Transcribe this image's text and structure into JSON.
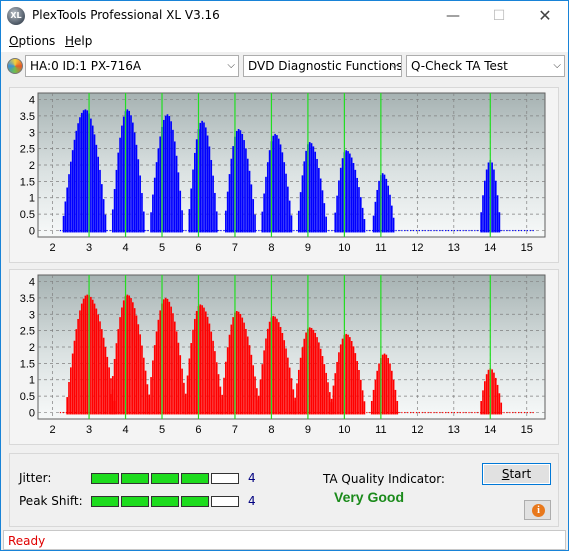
{
  "window": {
    "title": "PlexTools Professional XL V3.16",
    "app_icon_text": "XL",
    "minimize_glyph": "—",
    "maximize_glyph": "☐",
    "close_glyph": "✕"
  },
  "menu": {
    "options_accel": "O",
    "options_rest": "ptions",
    "help_accel": "H",
    "help_rest": "elp"
  },
  "toolbar": {
    "drive": "HA:0 ID:1  PX-716A",
    "function": "DVD Diagnostic Functions",
    "test": "Q-Check TA Test",
    "dropdown_glyph": "⌵"
  },
  "chart_data": [
    {
      "type": "bar",
      "series_color": "#0000ff",
      "x_ticks": [
        2,
        3,
        4,
        5,
        6,
        7,
        8,
        9,
        10,
        11,
        12,
        13,
        14,
        15
      ],
      "y_ticks": [
        "0",
        "0.5",
        "1",
        "1.5",
        "2",
        "2.5",
        "3",
        "3.5",
        "4"
      ],
      "xlim": [
        1.6,
        15.5
      ],
      "ylim": [
        -0.2,
        4.2
      ],
      "grid": true,
      "green_markers": [
        3,
        4,
        5,
        6,
        7,
        8,
        9,
        10,
        11,
        14
      ],
      "peaks": [
        {
          "center": 2.9,
          "start": 2.25,
          "end": 3.5,
          "height": 3.7
        },
        {
          "center": 4.05,
          "start": 3.6,
          "end": 4.55,
          "height": 3.7
        },
        {
          "center": 5.15,
          "start": 4.65,
          "end": 5.6,
          "height": 3.55
        },
        {
          "center": 6.1,
          "start": 5.7,
          "end": 6.55,
          "height": 3.35
        },
        {
          "center": 7.1,
          "start": 6.7,
          "end": 7.6,
          "height": 3.1
        },
        {
          "center": 8.1,
          "start": 7.7,
          "end": 8.6,
          "height": 2.95
        },
        {
          "center": 9.05,
          "start": 8.7,
          "end": 9.55,
          "height": 2.7
        },
        {
          "center": 10.05,
          "start": 9.7,
          "end": 10.6,
          "height": 2.45
        },
        {
          "center": 11.05,
          "start": 10.75,
          "end": 11.4,
          "height": 1.75
        },
        {
          "center": 14.0,
          "start": 13.7,
          "end": 14.3,
          "height": 2.15
        }
      ]
    },
    {
      "type": "bar",
      "series_color": "#ff0000",
      "x_ticks": [
        2,
        3,
        4,
        5,
        6,
        7,
        8,
        9,
        10,
        11,
        12,
        13,
        14,
        15
      ],
      "y_ticks": [
        "0",
        "0.5",
        "1",
        "1.5",
        "2",
        "2.5",
        "3",
        "3.5",
        "4"
      ],
      "xlim": [
        1.6,
        15.5
      ],
      "ylim": [
        -0.2,
        4.2
      ],
      "grid": true,
      "green_markers": [
        3,
        4,
        5,
        6,
        7,
        8,
        9,
        10,
        11,
        14
      ],
      "peaks": [
        {
          "center": 2.95,
          "start": 2.35,
          "end": 3.75,
          "height": 3.6
        },
        {
          "center": 4.05,
          "start": 3.55,
          "end": 4.7,
          "height": 3.6
        },
        {
          "center": 5.1,
          "start": 4.6,
          "end": 5.7,
          "height": 3.5
        },
        {
          "center": 6.05,
          "start": 5.6,
          "end": 6.7,
          "height": 3.3
        },
        {
          "center": 7.05,
          "start": 6.6,
          "end": 7.7,
          "height": 3.1
        },
        {
          "center": 8.05,
          "start": 7.6,
          "end": 8.7,
          "height": 2.95
        },
        {
          "center": 9.05,
          "start": 8.6,
          "end": 9.7,
          "height": 2.6
        },
        {
          "center": 10.05,
          "start": 9.6,
          "end": 10.6,
          "height": 2.4
        },
        {
          "center": 11.1,
          "start": 10.7,
          "end": 11.5,
          "height": 1.8
        },
        {
          "center": 14.0,
          "start": 13.7,
          "end": 14.35,
          "height": 1.35
        }
      ]
    }
  ],
  "results": {
    "jitter_label": "Jitter:",
    "jitter_value": "4",
    "jitter_level": 4,
    "peak_label": "Peak Shift:",
    "peak_value": "4",
    "peak_level": 4,
    "segments_total": 5,
    "ta_label": "TA Quality Indicator:",
    "ta_value": "Very Good",
    "start_accel": "S",
    "start_rest": "tart",
    "info_glyph": "i"
  },
  "status": {
    "text": "Ready"
  }
}
